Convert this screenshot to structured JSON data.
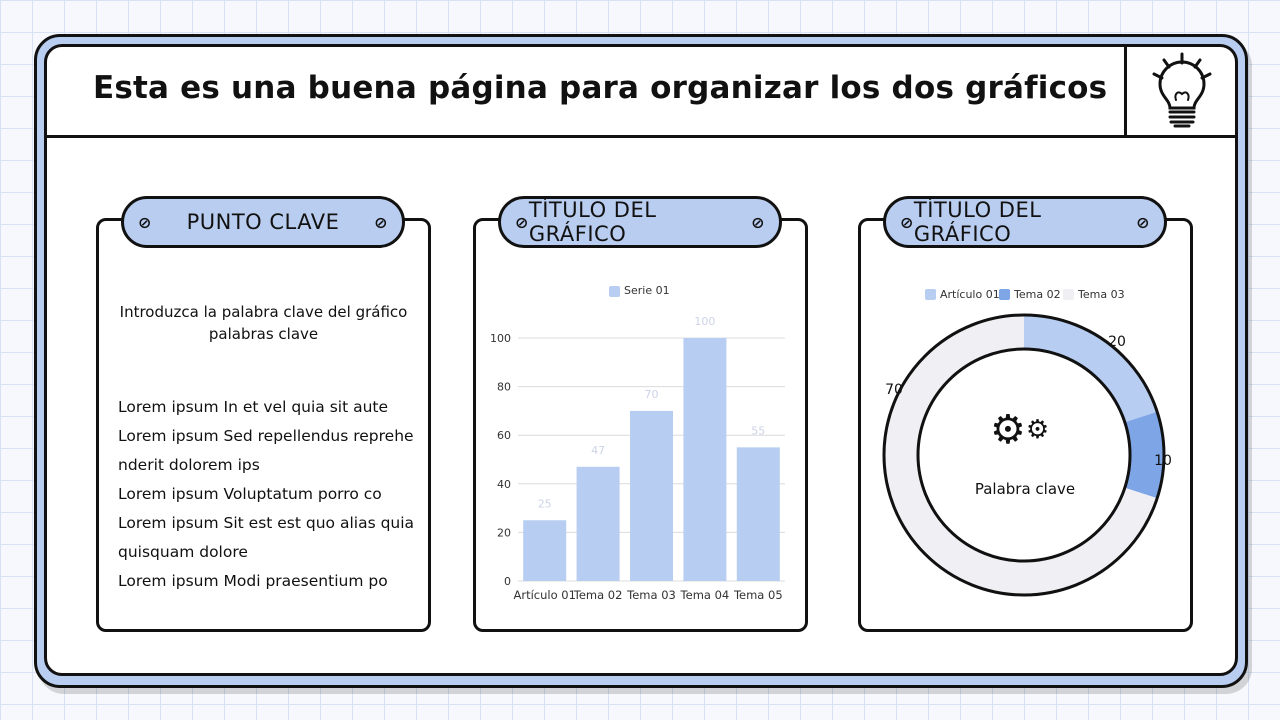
{
  "header": {
    "title": "Esta es una buena página para organizar los dos gráficos",
    "icon": "lightbulb-icon"
  },
  "card1": {
    "title": "PUNTO CLAVE",
    "keyword": [
      "Introduzca la palabra clave del gráfico",
      "palabras clave"
    ],
    "items": [
      "Lorem ipsum In et vel quia sit aute",
      "Lorem ipsum Sed repellendus reprehe",
      "nderit dolorem ips",
      "Lorem ipsum Voluptatum porro co",
      "Lorem ipsum Sit est est quo alias quia",
      "quisquam dolore",
      "Lorem ipsum Modi praesentium po"
    ]
  },
  "card2": {
    "title": "TÍTULO DEL GRÁFICO"
  },
  "card3": {
    "title": "TÍTULO DEL GRÁFICO",
    "center_label": "Palabra clave",
    "center_icon": "gears-icon"
  },
  "chart_data": [
    {
      "type": "bar",
      "categories": [
        "Artículo 01",
        "Tema 02",
        "Tema 03",
        "Tema 04",
        "Tema 05"
      ],
      "series": [
        {
          "name": "Serie 01",
          "values": [
            25,
            47,
            70,
            100,
            55
          ],
          "color": "#b7cdf2"
        }
      ],
      "ylim": [
        0,
        100
      ],
      "yticks": [
        0,
        20,
        40,
        60,
        80,
        100
      ],
      "grid": true,
      "legend": "top"
    },
    {
      "type": "pie",
      "variant": "donut",
      "categories": [
        "Artículo 01",
        "Tema 02",
        "Tema 03"
      ],
      "values": [
        20,
        10,
        70
      ],
      "colors": [
        "#b7cdf2",
        "#7ea5e6",
        "#f0f0f4"
      ],
      "legend": "top"
    }
  ]
}
